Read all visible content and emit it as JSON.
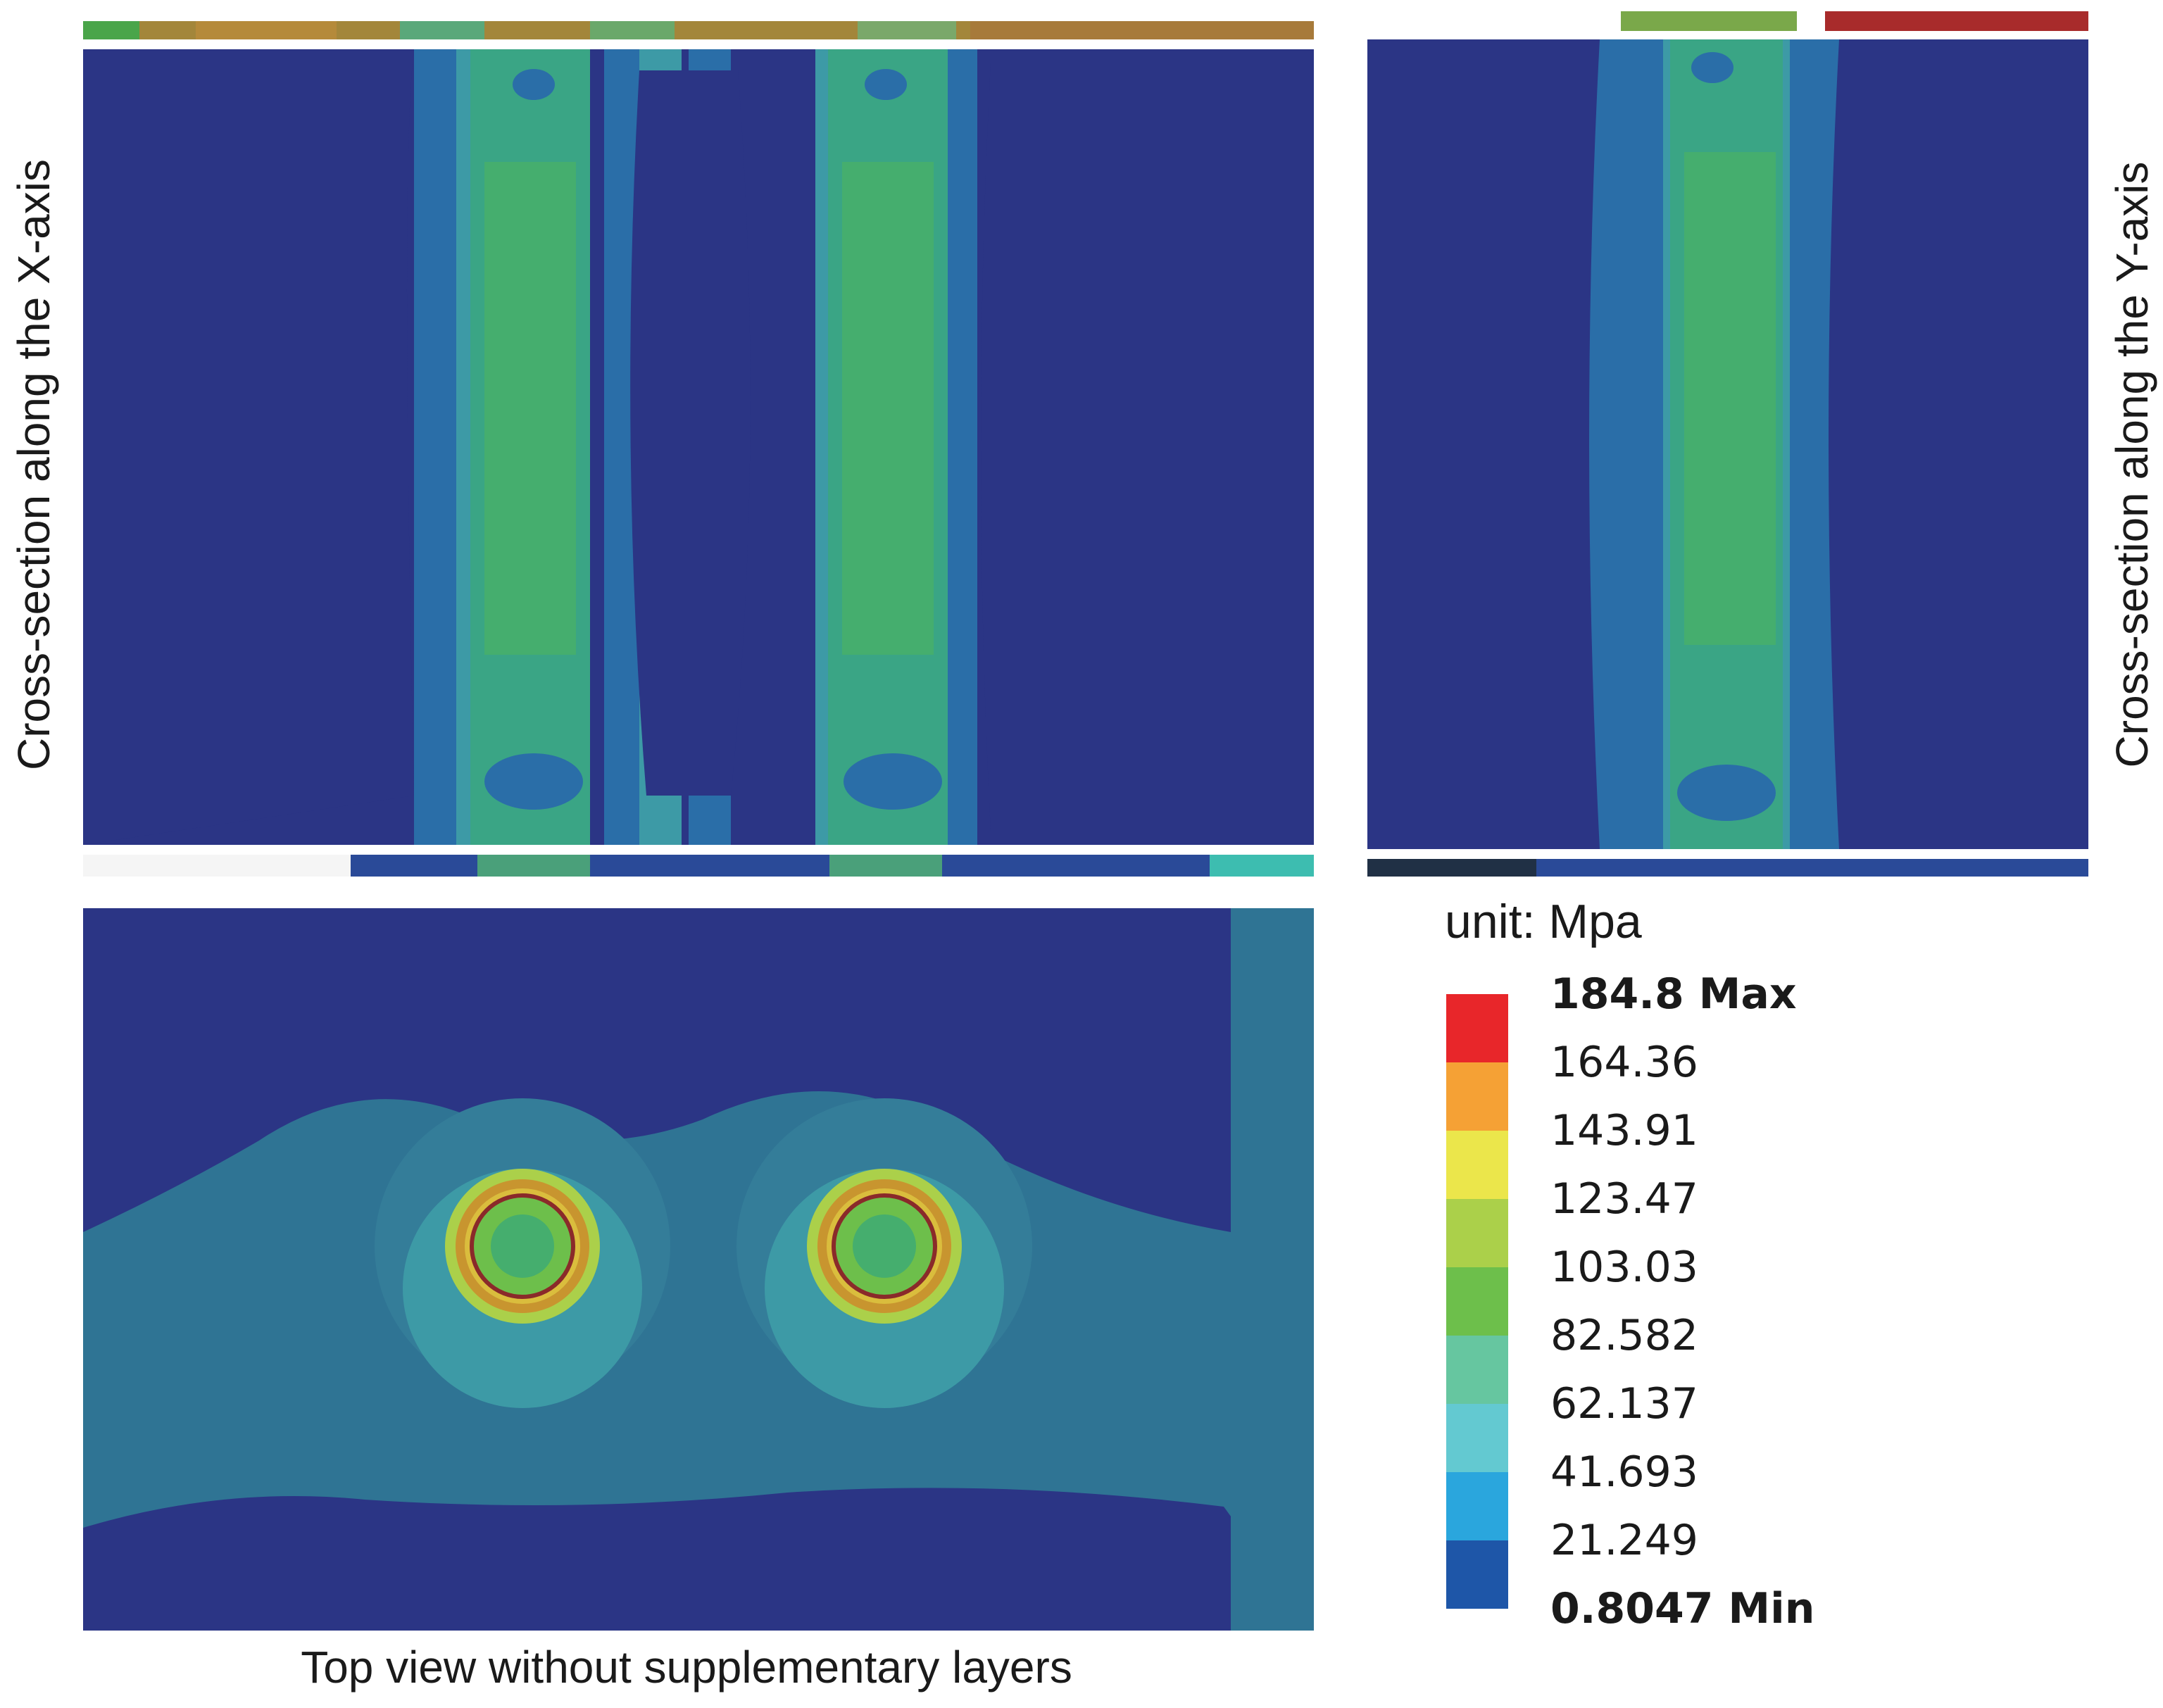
{
  "captions": {
    "x_axis_section": "Cross-section along the X-axis",
    "y_axis_section": "Cross-section along the Y-axis",
    "top_view": "Top view without supplementary layers"
  },
  "legend": {
    "unit": "unit: Mpa",
    "levels": [
      {
        "value": "184.8 Max",
        "bold": true
      },
      {
        "value": "164.36"
      },
      {
        "value": "143.91"
      },
      {
        "value": "123.47"
      },
      {
        "value": "103.03"
      },
      {
        "value": "82.582"
      },
      {
        "value": "62.137"
      },
      {
        "value": "41.693"
      },
      {
        "value": "21.249"
      },
      {
        "value": "0.8047 Min",
        "bold": true
      }
    ],
    "colors_top_to_bottom": [
      "#e8262a",
      "#f5a135",
      "#ebe64b",
      "#abd04a",
      "#6dbf4b",
      "#66c6a0",
      "#63c9d1",
      "#2aa6dd",
      "#1e56a8"
    ]
  },
  "palette": {
    "background_navy": "#2b3585",
    "low_blue": "#2a6ea8",
    "mid_teal": "#3d9aa6",
    "mid_green": "#3aa585",
    "high_green": "#5cb85a",
    "hot_orange": "#c8952f",
    "bar_red": "#a82b2b"
  }
}
